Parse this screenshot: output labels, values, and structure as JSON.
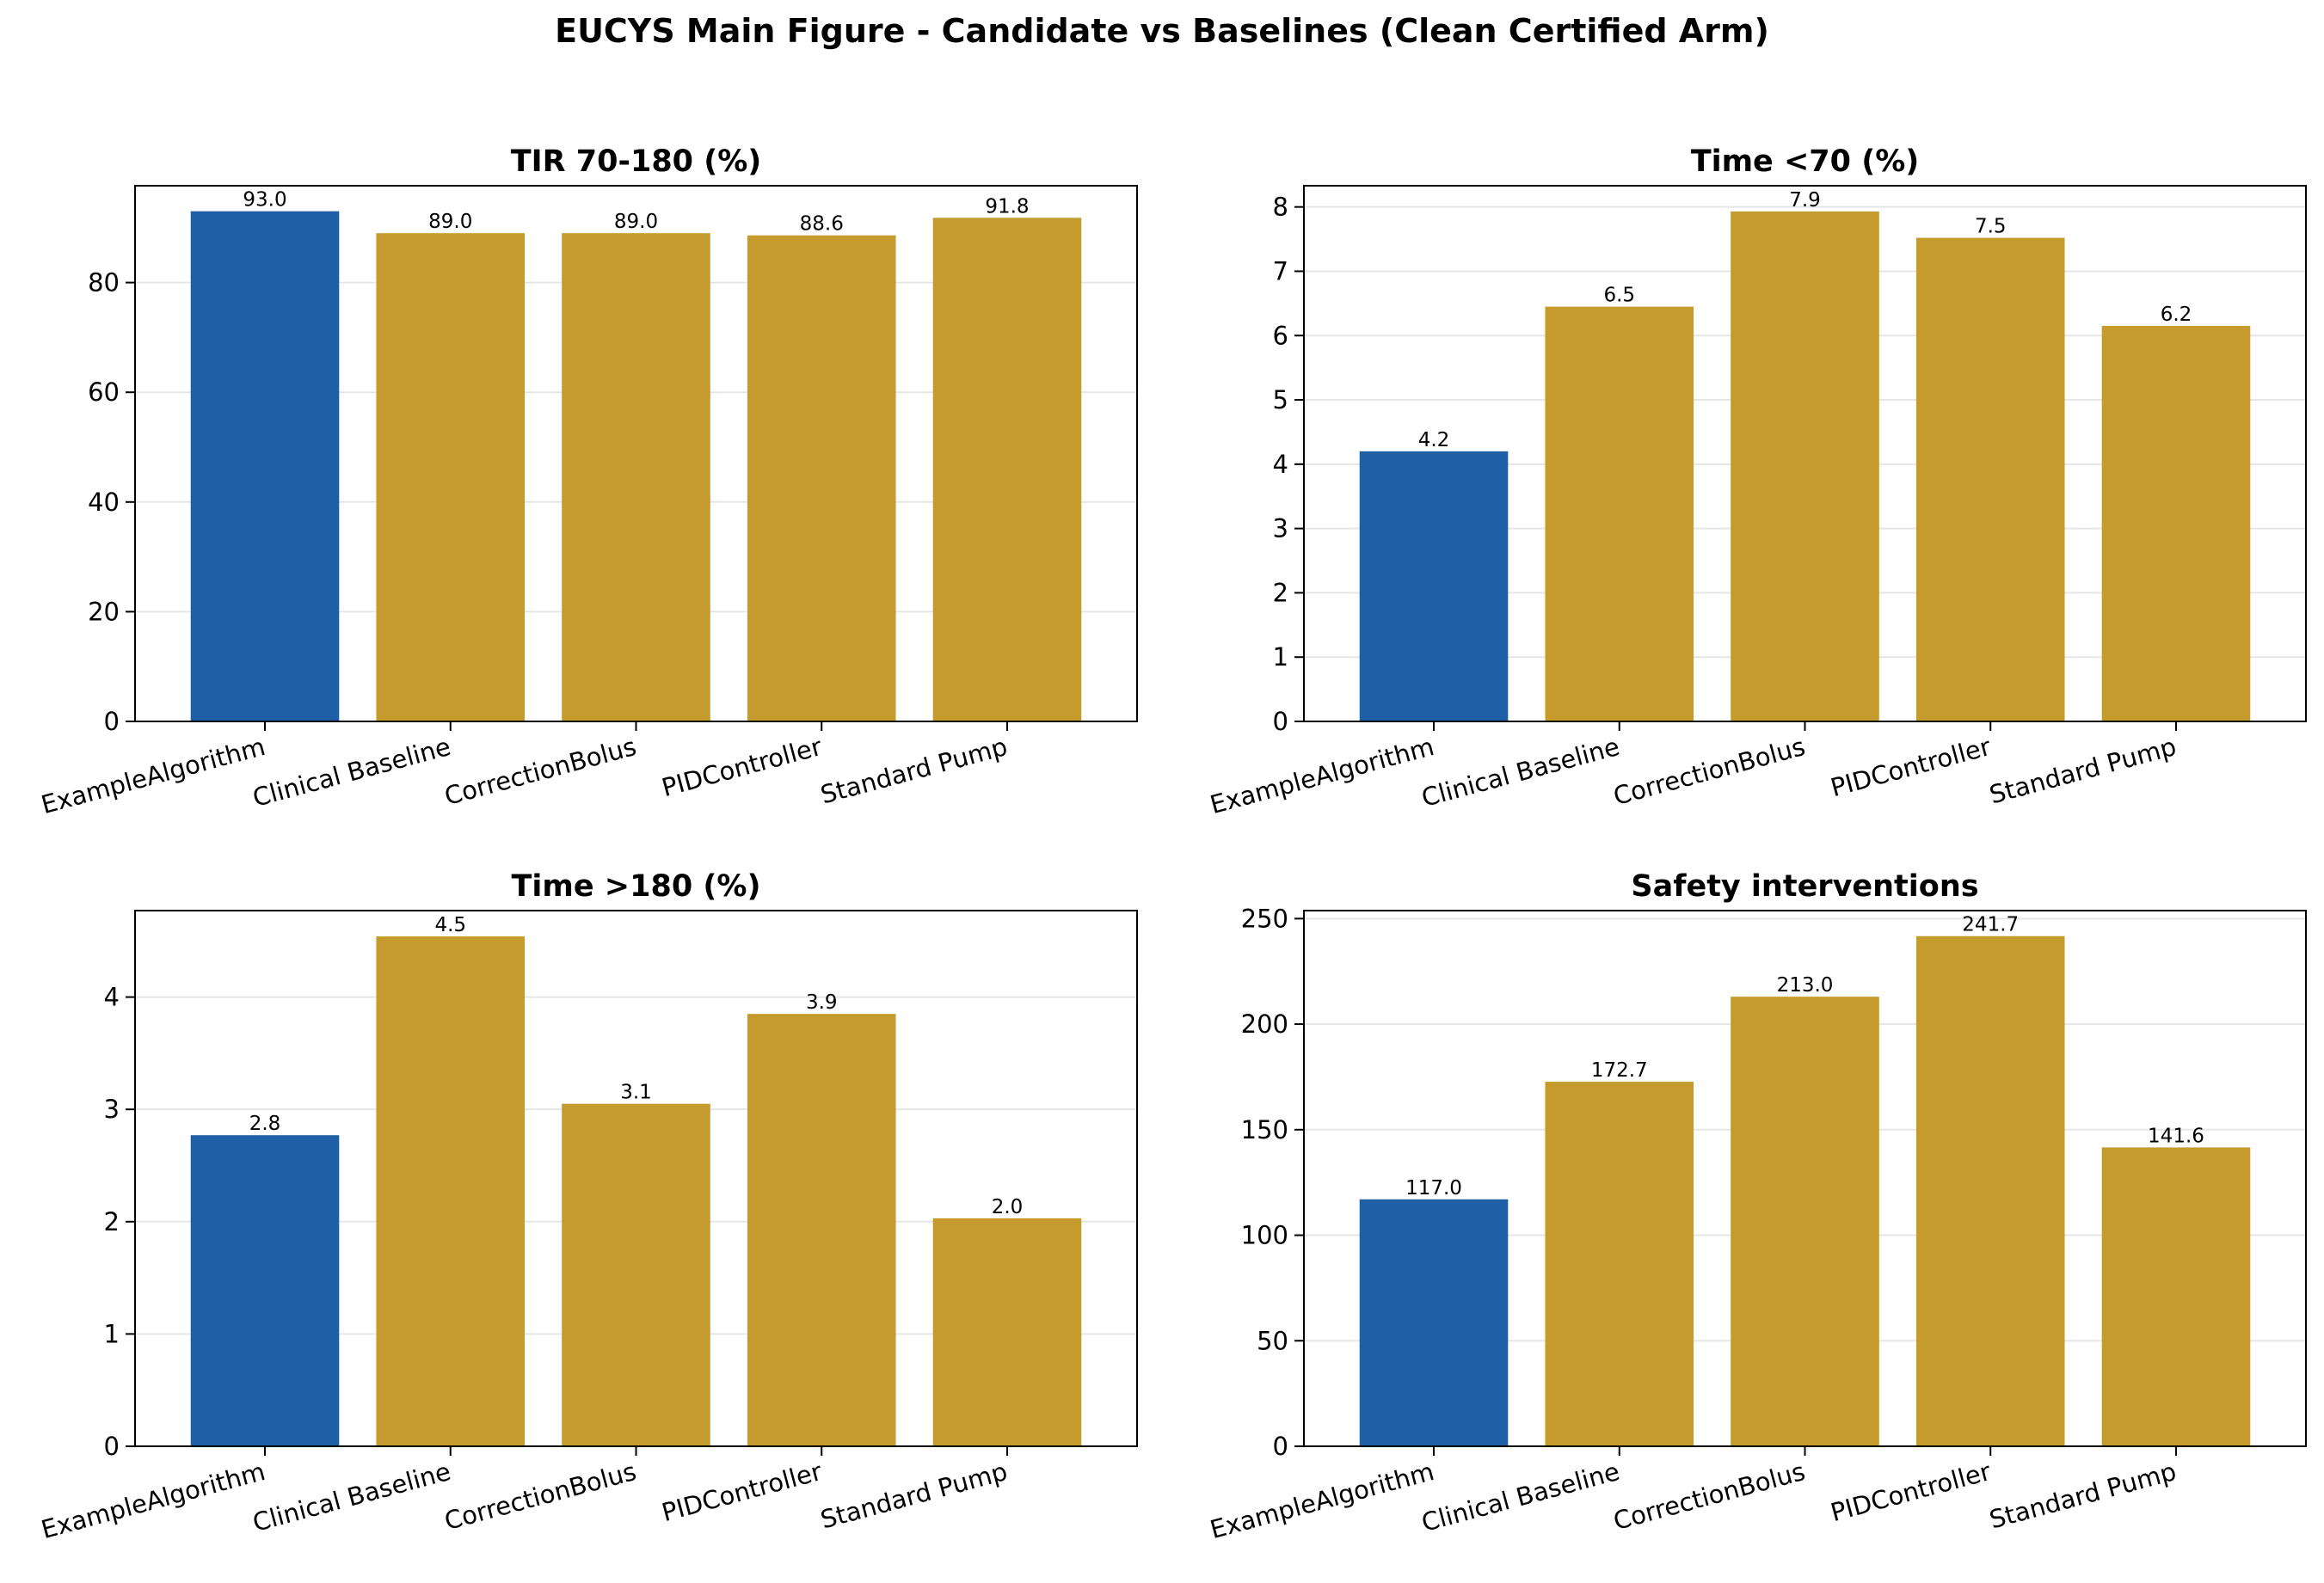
{
  "figure": {
    "title": "EUCYS Main Figure - Candidate vs Baselines (Clean Certified Arm)"
  },
  "colors": {
    "candidate": "#1f5fa6",
    "baseline": "#c49b2c",
    "grid": "#e6e6e6",
    "axis": "#000000"
  },
  "chart_data": [
    {
      "type": "bar",
      "title": "TIR 70-180 (%)",
      "categories": [
        "ExampleAlgorithm",
        "Clinical Baseline",
        "CorrectionBolus",
        "PIDController",
        "Standard Pump"
      ],
      "values": [
        93.0,
        89.0,
        89.0,
        88.6,
        91.8
      ],
      "labels": [
        "93.0",
        "89.0",
        "89.0",
        "88.6",
        "91.8"
      ],
      "highlight": [
        true,
        false,
        false,
        false,
        false
      ],
      "yticks": [
        "0",
        "20",
        "40",
        "60",
        "80"
      ],
      "ylim": [
        0,
        97.65
      ],
      "grid": "y"
    },
    {
      "type": "bar",
      "title": "Time <70 (%)",
      "categories": [
        "ExampleAlgorithm",
        "Clinical Baseline",
        "CorrectionBolus",
        "PIDController",
        "Standard Pump"
      ],
      "values": [
        4.2,
        6.45,
        7.93,
        7.52,
        6.15
      ],
      "labels": [
        "4.2",
        "6.5",
        "7.9",
        "7.5",
        "6.2"
      ],
      "highlight": [
        true,
        false,
        false,
        false,
        false
      ],
      "yticks": [
        "0",
        "1",
        "2",
        "3",
        "4",
        "5",
        "6",
        "7",
        "8"
      ],
      "ylim": [
        0,
        8.33
      ],
      "grid": "y"
    },
    {
      "type": "bar",
      "title": "Time >180 (%)",
      "categories": [
        "ExampleAlgorithm",
        "Clinical Baseline",
        "CorrectionBolus",
        "PIDController",
        "Standard Pump"
      ],
      "values": [
        2.77,
        4.54,
        3.05,
        3.85,
        2.03
      ],
      "labels": [
        "2.8",
        "4.5",
        "3.1",
        "3.9",
        "2.0"
      ],
      "highlight": [
        true,
        false,
        false,
        false,
        false
      ],
      "yticks": [
        "0",
        "1",
        "2",
        "3",
        "4"
      ],
      "ylim": [
        0,
        4.77
      ],
      "grid": "y"
    },
    {
      "type": "bar",
      "title": "Safety interventions",
      "categories": [
        "ExampleAlgorithm",
        "Clinical Baseline",
        "CorrectionBolus",
        "PIDController",
        "Standard Pump"
      ],
      "values": [
        117.0,
        172.7,
        213.0,
        241.7,
        141.6
      ],
      "labels": [
        "117.0",
        "172.7",
        "213.0",
        "241.7",
        "141.6"
      ],
      "highlight": [
        true,
        false,
        false,
        false,
        false
      ],
      "yticks": [
        "0",
        "50",
        "100",
        "150",
        "200",
        "250"
      ],
      "ylim": [
        0,
        253.8
      ],
      "grid": "y"
    }
  ]
}
